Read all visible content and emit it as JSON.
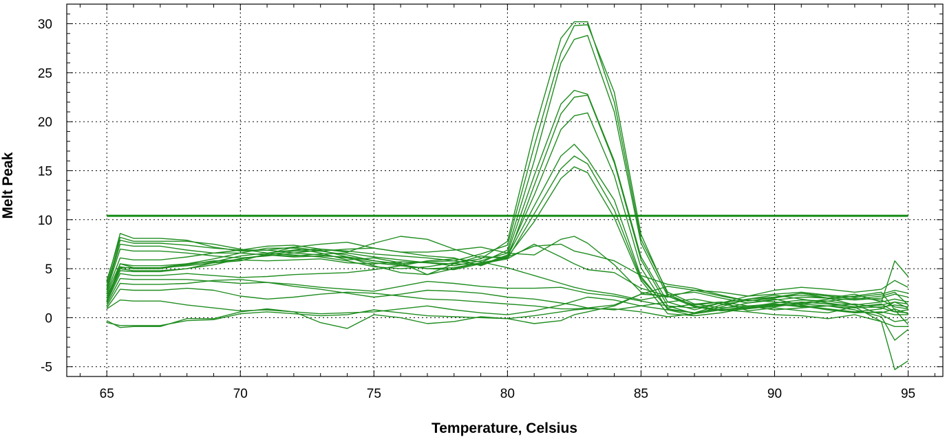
{
  "chart_data": {
    "type": "line",
    "title": "",
    "xlabel": "Temperature, Celsius",
    "ylabel": "Melt Peak",
    "xlim": [
      63.5,
      96.3
    ],
    "ylim": [
      -6,
      32
    ],
    "x_ticks": [
      65,
      70,
      75,
      80,
      85,
      90,
      95
    ],
    "y_ticks": [
      -5,
      0,
      5,
      10,
      15,
      20,
      25,
      30
    ],
    "grid": true,
    "line_color": "#1f8c1f",
    "threshold": {
      "y": 10.4,
      "x_range": [
        65,
        95
      ],
      "color": "#128a12"
    },
    "x": [
      65,
      65.5,
      66,
      67,
      68,
      69,
      70,
      71,
      72,
      73,
      74,
      75,
      76,
      77,
      78,
      79,
      80,
      81,
      82,
      82.5,
      83,
      84,
      85,
      86,
      87,
      88,
      89,
      90,
      91,
      92,
      93,
      94,
      94.5,
      95
    ],
    "series": [
      {
        "values": [
          3.8,
          8.2,
          7.8,
          7.8,
          7.8,
          7.5,
          7.0,
          6.6,
          6.4,
          6.2,
          5.8,
          5.2,
          5.0,
          5.2,
          5.6,
          6.0,
          7.8,
          19.0,
          28.5,
          30.2,
          30.2,
          22.0,
          8.0,
          2.6,
          1.4,
          1.0,
          1.2,
          1.4,
          1.1,
          1.2,
          1.0,
          1.1,
          1.3,
          1.1
        ]
      },
      {
        "values": [
          3.5,
          8.6,
          8.1,
          8.1,
          7.9,
          7.2,
          6.8,
          6.9,
          7.2,
          6.8,
          6.4,
          5.8,
          5.5,
          5.7,
          5.8,
          6.5,
          7.4,
          17.5,
          27.0,
          29.8,
          29.9,
          23.0,
          8.5,
          2.4,
          1.2,
          0.8,
          1.0,
          1.3,
          1.6,
          1.4,
          1.1,
          1.3,
          1.6,
          1.4
        ]
      },
      {
        "values": [
          3.2,
          7.9,
          7.6,
          7.6,
          7.4,
          7.1,
          6.9,
          6.9,
          6.6,
          6.4,
          6.1,
          5.6,
          5.3,
          5.0,
          5.1,
          5.6,
          6.9,
          16.0,
          26.0,
          28.4,
          28.8,
          21.0,
          7.6,
          2.2,
          1.1,
          0.8,
          1.1,
          1.5,
          1.8,
          1.7,
          1.3,
          1.6,
          1.9,
          1.6
        ]
      },
      {
        "values": [
          3.0,
          7.5,
          7.3,
          7.3,
          6.9,
          6.6,
          6.6,
          6.4,
          6.3,
          6.5,
          6.6,
          6.2,
          5.9,
          5.6,
          5.3,
          5.8,
          6.6,
          14.5,
          21.8,
          23.2,
          22.8,
          16.0,
          6.2,
          1.6,
          0.8,
          1.5,
          2.2,
          2.4,
          2.6,
          2.3,
          2.1,
          2.4,
          2.8,
          2.5
        ]
      },
      {
        "values": [
          2.8,
          7.0,
          6.8,
          6.8,
          6.6,
          6.3,
          6.1,
          6.3,
          6.6,
          6.9,
          6.2,
          5.3,
          4.6,
          4.4,
          5.0,
          5.6,
          6.1,
          13.5,
          20.8,
          22.5,
          22.7,
          15.8,
          5.9,
          1.2,
          0.4,
          1.1,
          1.9,
          2.1,
          2.3,
          2.0,
          1.8,
          2.0,
          2.4,
          2.1
        ]
      },
      {
        "values": [
          2.6,
          6.1,
          5.9,
          5.9,
          6.2,
          6.6,
          6.9,
          7.3,
          7.4,
          7.0,
          6.8,
          6.5,
          6.3,
          6.1,
          5.8,
          5.4,
          6.4,
          12.5,
          19.2,
          20.6,
          20.9,
          14.5,
          5.1,
          0.8,
          0.2,
          0.5,
          1.0,
          1.3,
          1.2,
          0.9,
          0.6,
          0.5,
          0.9,
          0.4
        ]
      },
      {
        "values": [
          2.4,
          5.5,
          5.1,
          5.1,
          5.3,
          5.6,
          6.0,
          6.4,
          6.8,
          6.8,
          7.0,
          7.1,
          6.7,
          6.3,
          6.1,
          5.3,
          6.3,
          11.4,
          16.5,
          17.7,
          16.2,
          12.0,
          4.2,
          0.9,
          0.5,
          1.3,
          1.8,
          1.6,
          1.4,
          1.7,
          2.0,
          1.8,
          1.1,
          0.9
        ]
      },
      {
        "values": [
          2.2,
          5.0,
          4.8,
          4.8,
          5.0,
          5.4,
          6.0,
          6.4,
          6.2,
          6.3,
          6.2,
          5.8,
          5.4,
          5.0,
          4.9,
          5.5,
          6.0,
          10.6,
          15.2,
          16.5,
          15.7,
          11.0,
          4.0,
          1.0,
          1.4,
          1.6,
          1.2,
          0.8,
          1.0,
          1.2,
          1.4,
          1.0,
          0.6,
          0.8
        ]
      },
      {
        "values": [
          2.0,
          5.2,
          5.0,
          5.0,
          5.4,
          5.8,
          5.9,
          5.8,
          5.9,
          6.0,
          5.6,
          5.5,
          5.7,
          5.6,
          5.5,
          5.4,
          6.2,
          9.8,
          14.2,
          15.4,
          14.8,
          10.2,
          3.8,
          0.4,
          0.2,
          0.5,
          1.0,
          1.4,
          1.2,
          0.8,
          0.5,
          0.6,
          0.3,
          0.3
        ]
      },
      {
        "values": [
          1.8,
          4.8,
          4.7,
          4.7,
          5.0,
          5.6,
          5.8,
          6.5,
          7.2,
          7.5,
          7.7,
          7.1,
          6.7,
          6.7,
          6.9,
          7.2,
          6.6,
          6.4,
          8.0,
          8.3,
          7.6,
          5.4,
          2.6,
          2.1,
          2.8,
          2.6,
          2.2,
          2.8,
          3.1,
          2.9,
          2.6,
          2.9,
          3.8,
          3.1
        ]
      },
      {
        "values": [
          1.7,
          5.5,
          5.3,
          5.3,
          5.5,
          5.7,
          6.3,
          6.6,
          6.9,
          7.0,
          6.7,
          7.6,
          8.3,
          8.0,
          7.0,
          6.1,
          6.2,
          7.3,
          7.5,
          6.8,
          6.5,
          5.8,
          4.3,
          3.4,
          3.0,
          2.3,
          1.7,
          2.0,
          2.5,
          2.0,
          1.3,
          0.3,
          -0.4,
          -0.2
        ]
      },
      {
        "values": [
          1.6,
          5.1,
          5.1,
          5.1,
          5.5,
          6.0,
          6.6,
          7.1,
          7.1,
          6.6,
          5.9,
          6.1,
          5.6,
          4.4,
          5.5,
          6.3,
          6.0,
          7.5,
          6.2,
          5.5,
          4.9,
          4.6,
          3.0,
          2.2,
          1.1,
          0.7,
          0.9,
          1.2,
          1.4,
          1.2,
          0.8,
          0.1,
          -2.3,
          -1.2
        ]
      },
      {
        "values": [
          1.6,
          4.5,
          4.3,
          4.3,
          4.5,
          4.3,
          4.1,
          4.2,
          4.4,
          4.5,
          4.6,
          4.9,
          5.3,
          5.8,
          6.0,
          5.7,
          5.1,
          4.3,
          3.5,
          3.1,
          2.8,
          2.4,
          1.8,
          2.3,
          2.6,
          2.0,
          1.5,
          1.8,
          2.1,
          2.0,
          2.4,
          1.6,
          5.8,
          4.2
        ]
      },
      {
        "values": [
          1.4,
          4.0,
          3.9,
          3.9,
          3.9,
          3.7,
          3.5,
          3.6,
          3.4,
          3.1,
          2.9,
          2.7,
          3.2,
          3.7,
          3.5,
          3.2,
          3.0,
          3.0,
          3.1,
          2.8,
          2.5,
          2.2,
          1.7,
          1.2,
          1.0,
          1.5,
          1.9,
          2.3,
          1.9,
          1.5,
          1.1,
          1.4,
          0.6,
          0.5
        ]
      },
      {
        "values": [
          1.2,
          3.5,
          3.4,
          3.4,
          3.5,
          3.8,
          3.9,
          3.6,
          3.2,
          2.9,
          2.5,
          2.1,
          2.4,
          2.8,
          2.7,
          2.5,
          2.1,
          1.9,
          1.5,
          1.3,
          1.0,
          0.8,
          1.2,
          1.6,
          1.9,
          1.4,
          1.0,
          1.1,
          1.5,
          1.9,
          2.2,
          2.6,
          0.8,
          -0.7
        ]
      },
      {
        "values": [
          1.0,
          2.9,
          2.8,
          2.8,
          3.0,
          2.8,
          2.2,
          1.9,
          2.1,
          2.4,
          2.6,
          2.5,
          2.2,
          1.9,
          1.8,
          1.6,
          1.4,
          1.2,
          0.9,
          0.9,
          1.0,
          1.3,
          2.4,
          3.2,
          2.8,
          2.2,
          1.7,
          2.1,
          2.5,
          2.2,
          1.9,
          2.2,
          2.6,
          1.3
        ]
      },
      {
        "values": [
          0.9,
          1.8,
          1.7,
          1.7,
          1.3,
          1.0,
          0.7,
          0.8,
          0.6,
          0.4,
          0.5,
          0.6,
          0.9,
          1.2,
          0.8,
          0.5,
          0.3,
          0.7,
          1.3,
          1.7,
          2.1,
          1.8,
          1.2,
          0.8,
          0.5,
          0.9,
          1.5,
          1.9,
          1.3,
          0.8,
          0.6,
          0.9,
          1.6,
          1.0
        ]
      },
      {
        "values": [
          -0.3,
          -1.0,
          -0.9,
          -0.9,
          -0.1,
          -0.1,
          0.6,
          0.9,
          0.6,
          -0.5,
          -1.1,
          0.3,
          0.0,
          -0.6,
          -0.4,
          0.1,
          -0.1,
          -0.6,
          -0.3,
          0.3,
          0.6,
          1.2,
          2.4,
          2.2,
          1.3,
          1.6,
          0.7,
          1.0,
          0.7,
          0.5,
          1.1,
          -0.4,
          -5.3,
          -4.4
        ]
      },
      {
        "values": [
          -0.5,
          -0.8,
          -0.8,
          -0.8,
          -0.3,
          -0.2,
          0.4,
          0.6,
          0.4,
          0.2,
          0.3,
          0.8,
          0.5,
          0.2,
          0.1,
          0.0,
          -0.1,
          0.2,
          0.6,
          0.8,
          0.9,
          0.9,
          0.6,
          0.1,
          0.4,
          0.8,
          0.6,
          0.3,
          0.2,
          -0.1,
          0.3,
          -0.4,
          -0.9,
          -0.9
        ]
      }
    ]
  }
}
